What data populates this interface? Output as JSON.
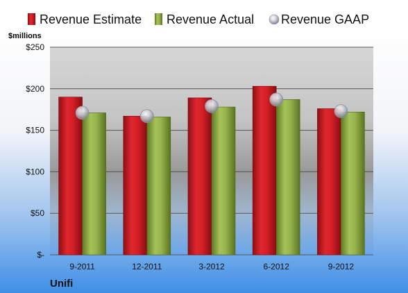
{
  "company": "Unifi",
  "colors": {
    "estimate": "#c0161e",
    "actual": "#8aa63e",
    "gaap": "#c8ccd6"
  },
  "chart_data": {
    "type": "bar",
    "ylabel": "$millions",
    "ylim": [
      0,
      250
    ],
    "yticks": [
      0,
      50,
      100,
      150,
      200,
      250
    ],
    "ytick_labels": [
      "$-",
      "$50",
      "$100",
      "$150",
      "$200",
      "$250"
    ],
    "categories": [
      "9-2011",
      "12-2011",
      "3-2012",
      "6-2012",
      "9-2012"
    ],
    "series": [
      {
        "name": "Revenue Estimate",
        "type": "bar",
        "values": [
          190,
          167,
          189,
          203,
          176
        ]
      },
      {
        "name": "Revenue Actual",
        "type": "bar",
        "values": [
          171,
          166,
          178,
          187,
          172
        ]
      },
      {
        "name": "Revenue GAAP",
        "type": "marker",
        "values": [
          171,
          167,
          179,
          187,
          173
        ]
      }
    ],
    "legend": "top",
    "grid": true
  }
}
